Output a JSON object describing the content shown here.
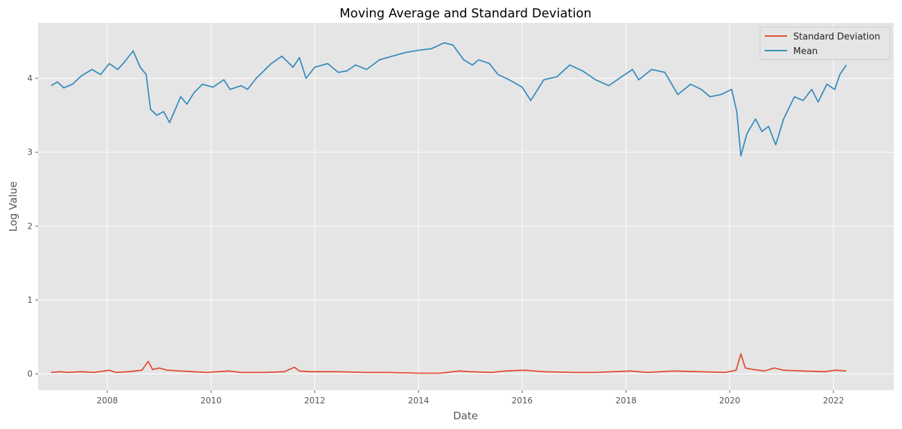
{
  "chart_data": {
    "type": "line",
    "title": "Moving Average and Standard Deviation",
    "xlabel": "Date",
    "ylabel": "Log Value",
    "xlim": [
      "2006-09-01",
      "2023-03-01"
    ],
    "ylim": [
      -0.22,
      4.75
    ],
    "x_ticks": [
      "2008-01-01",
      "2010-01-01",
      "2012-01-01",
      "2014-01-01",
      "2016-01-01",
      "2018-01-01",
      "2020-01-01",
      "2022-01-01"
    ],
    "x_tick_labels": [
      "2008",
      "2010",
      "2012",
      "2014",
      "2016",
      "2018",
      "2020",
      "2022"
    ],
    "y_ticks": [
      0,
      1,
      2,
      3,
      4
    ],
    "y_tick_labels": [
      "0",
      "1",
      "2",
      "3",
      "4"
    ],
    "grid": true,
    "legend": "top-right",
    "series": [
      {
        "name": "Standard Deviation",
        "color": "#E24A33",
        "points": [
          [
            "2006-12-01",
            0.02
          ],
          [
            "2007-02-01",
            0.03
          ],
          [
            "2007-04-01",
            0.02
          ],
          [
            "2007-07-01",
            0.03
          ],
          [
            "2007-10-01",
            0.02
          ],
          [
            "2008-01-15",
            0.05
          ],
          [
            "2008-03-01",
            0.02
          ],
          [
            "2008-06-01",
            0.03
          ],
          [
            "2008-09-01",
            0.05
          ],
          [
            "2008-10-15",
            0.17
          ],
          [
            "2008-11-15",
            0.06
          ],
          [
            "2009-01-01",
            0.08
          ],
          [
            "2009-03-01",
            0.05
          ],
          [
            "2009-06-01",
            0.04
          ],
          [
            "2009-09-01",
            0.03
          ],
          [
            "2009-12-01",
            0.02
          ],
          [
            "2010-05-01",
            0.04
          ],
          [
            "2010-08-01",
            0.02
          ],
          [
            "2011-01-01",
            0.02
          ],
          [
            "2011-06-01",
            0.03
          ],
          [
            "2011-08-10",
            0.09
          ],
          [
            "2011-09-15",
            0.04
          ],
          [
            "2011-12-01",
            0.03
          ],
          [
            "2012-06-01",
            0.03
          ],
          [
            "2013-01-01",
            0.02
          ],
          [
            "2013-06-01",
            0.02
          ],
          [
            "2014-01-01",
            0.01
          ],
          [
            "2014-06-01",
            0.01
          ],
          [
            "2014-10-15",
            0.04
          ],
          [
            "2015-01-01",
            0.03
          ],
          [
            "2015-06-01",
            0.02
          ],
          [
            "2015-09-01",
            0.04
          ],
          [
            "2016-01-15",
            0.05
          ],
          [
            "2016-06-01",
            0.03
          ],
          [
            "2017-01-01",
            0.02
          ],
          [
            "2017-06-01",
            0.02
          ],
          [
            "2018-02-01",
            0.04
          ],
          [
            "2018-06-01",
            0.02
          ],
          [
            "2018-12-01",
            0.04
          ],
          [
            "2019-06-01",
            0.03
          ],
          [
            "2019-12-01",
            0.02
          ],
          [
            "2020-02-15",
            0.05
          ],
          [
            "2020-03-20",
            0.27
          ],
          [
            "2020-04-20",
            0.08
          ],
          [
            "2020-06-15",
            0.06
          ],
          [
            "2020-09-01",
            0.04
          ],
          [
            "2020-11-10",
            0.08
          ],
          [
            "2021-01-15",
            0.05
          ],
          [
            "2021-06-01",
            0.04
          ],
          [
            "2021-11-01",
            0.03
          ],
          [
            "2022-01-15",
            0.05
          ],
          [
            "2022-04-01",
            0.04
          ]
        ]
      },
      {
        "name": "Mean",
        "color": "#348ABD",
        "points": [
          [
            "2006-12-01",
            3.9
          ],
          [
            "2007-01-15",
            3.95
          ],
          [
            "2007-03-01",
            3.87
          ],
          [
            "2007-05-01",
            3.92
          ],
          [
            "2007-07-01",
            4.03
          ],
          [
            "2007-09-15",
            4.12
          ],
          [
            "2007-11-15",
            4.05
          ],
          [
            "2008-01-15",
            4.2
          ],
          [
            "2008-03-15",
            4.12
          ],
          [
            "2008-05-01",
            4.22
          ],
          [
            "2008-07-01",
            4.37
          ],
          [
            "2008-08-20",
            4.15
          ],
          [
            "2008-10-01",
            4.05
          ],
          [
            "2008-11-01",
            3.58
          ],
          [
            "2008-12-15",
            3.5
          ],
          [
            "2009-02-01",
            3.55
          ],
          [
            "2009-03-15",
            3.4
          ],
          [
            "2009-06-01",
            3.75
          ],
          [
            "2009-07-15",
            3.65
          ],
          [
            "2009-09-01",
            3.8
          ],
          [
            "2009-11-01",
            3.92
          ],
          [
            "2010-01-15",
            3.88
          ],
          [
            "2010-04-01",
            3.98
          ],
          [
            "2010-05-15",
            3.85
          ],
          [
            "2010-08-01",
            3.9
          ],
          [
            "2010-09-15",
            3.85
          ],
          [
            "2010-11-15",
            4.0
          ],
          [
            "2011-03-01",
            4.2
          ],
          [
            "2011-05-15",
            4.3
          ],
          [
            "2011-08-01",
            4.15
          ],
          [
            "2011-09-15",
            4.28
          ],
          [
            "2011-11-01",
            4.0
          ],
          [
            "2012-01-01",
            4.15
          ],
          [
            "2012-04-01",
            4.2
          ],
          [
            "2012-06-15",
            4.08
          ],
          [
            "2012-08-15",
            4.1
          ],
          [
            "2012-10-15",
            4.18
          ],
          [
            "2013-01-01",
            4.12
          ],
          [
            "2013-04-01",
            4.25
          ],
          [
            "2013-07-01",
            4.3
          ],
          [
            "2013-10-01",
            4.35
          ],
          [
            "2014-01-01",
            4.38
          ],
          [
            "2014-04-01",
            4.4
          ],
          [
            "2014-07-01",
            4.48
          ],
          [
            "2014-09-01",
            4.45
          ],
          [
            "2014-11-15",
            4.25
          ],
          [
            "2015-01-15",
            4.18
          ],
          [
            "2015-03-01",
            4.25
          ],
          [
            "2015-05-15",
            4.2
          ],
          [
            "2015-07-15",
            4.05
          ],
          [
            "2015-10-01",
            3.98
          ],
          [
            "2016-01-01",
            3.88
          ],
          [
            "2016-03-01",
            3.7
          ],
          [
            "2016-06-01",
            3.98
          ],
          [
            "2016-09-01",
            4.02
          ],
          [
            "2016-12-01",
            4.18
          ],
          [
            "2017-03-01",
            4.1
          ],
          [
            "2017-06-01",
            3.98
          ],
          [
            "2017-09-01",
            3.9
          ],
          [
            "2017-12-01",
            4.02
          ],
          [
            "2018-02-15",
            4.12
          ],
          [
            "2018-04-01",
            3.98
          ],
          [
            "2018-07-01",
            4.12
          ],
          [
            "2018-10-01",
            4.08
          ],
          [
            "2019-01-01",
            3.78
          ],
          [
            "2019-04-01",
            3.92
          ],
          [
            "2019-06-15",
            3.85
          ],
          [
            "2019-08-15",
            3.75
          ],
          [
            "2019-11-01",
            3.78
          ],
          [
            "2020-01-15",
            3.85
          ],
          [
            "2020-02-20",
            3.55
          ],
          [
            "2020-03-20",
            2.95
          ],
          [
            "2020-05-01",
            3.25
          ],
          [
            "2020-07-01",
            3.45
          ],
          [
            "2020-08-15",
            3.28
          ],
          [
            "2020-10-01",
            3.35
          ],
          [
            "2020-11-20",
            3.1
          ],
          [
            "2021-01-15",
            3.45
          ],
          [
            "2021-04-01",
            3.75
          ],
          [
            "2021-06-01",
            3.7
          ],
          [
            "2021-08-01",
            3.85
          ],
          [
            "2021-09-15",
            3.68
          ],
          [
            "2021-11-15",
            3.92
          ],
          [
            "2022-01-10",
            3.85
          ],
          [
            "2022-02-15",
            4.05
          ],
          [
            "2022-04-01",
            4.18
          ]
        ]
      }
    ]
  }
}
